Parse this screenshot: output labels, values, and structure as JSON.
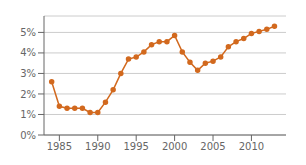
{
  "chart_data": {
    "type": "line",
    "x": [
      1984,
      1985,
      1986,
      1987,
      1988,
      1989,
      1990,
      1991,
      1992,
      1993,
      1994,
      1995,
      1996,
      1997,
      1998,
      1999,
      2000,
      2001,
      2002,
      2003,
      2004,
      2005,
      2006,
      2007,
      2008,
      2009,
      2010,
      2011,
      2012,
      2013
    ],
    "values": [
      2.6,
      1.4,
      1.3,
      1.3,
      1.3,
      1.1,
      1.1,
      1.6,
      2.2,
      3.0,
      3.7,
      3.8,
      4.05,
      4.4,
      4.55,
      4.55,
      4.85,
      4.05,
      3.55,
      3.15,
      3.5,
      3.6,
      3.8,
      4.3,
      4.55,
      4.7,
      4.95,
      5.05,
      5.15,
      5.3
    ],
    "color": "#D2691E",
    "marker": "circle",
    "xlim": [
      1983,
      2014.5
    ],
    "ylim": [
      0,
      5.8
    ],
    "xticks": [
      1985,
      1990,
      1995,
      2000,
      2005,
      2010
    ],
    "yticks": [
      {
        "value": 0,
        "label": "0%"
      },
      {
        "value": 1,
        "label": "1%"
      },
      {
        "value": 2,
        "label": "2%"
      },
      {
        "value": 3,
        "label": "3%"
      },
      {
        "value": 4,
        "label": "4%"
      },
      {
        "value": 5,
        "label": "5%"
      }
    ],
    "grid": true
  }
}
